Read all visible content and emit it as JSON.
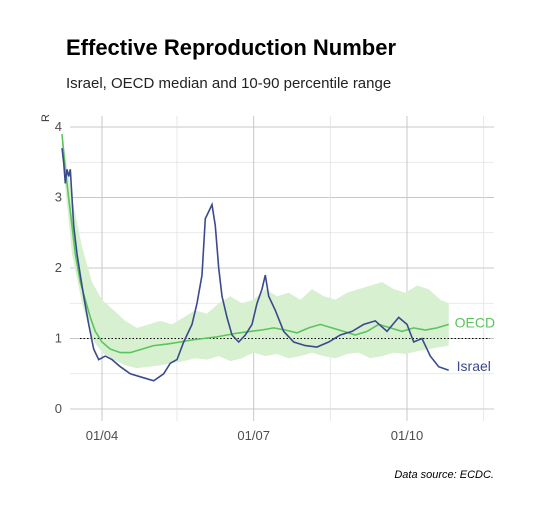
{
  "chart_data": {
    "type": "line",
    "title": "Effective Reproduction Number",
    "subtitle": "Israel, OECD median and 10-90 percentile range",
    "ylabel": "R",
    "xlabel": "",
    "caption": "Data source: ECDC.",
    "ylim": [
      0,
      4
    ],
    "y_ticks": [
      "0",
      "1",
      "2",
      "3",
      "4"
    ],
    "x_ticks": [
      "01/04",
      "01/07",
      "01/10"
    ],
    "reference_line": 1,
    "grid": true,
    "colors": {
      "israel": "#3b4a8c",
      "oecd": "#5cc45c",
      "band": "#d6f0d0"
    },
    "series": [
      {
        "name": "Israel",
        "x": [
          "2020-03-08",
          "2020-03-09",
          "2020-03-10",
          "2020-03-11",
          "2020-03-12",
          "2020-03-13",
          "2020-03-14",
          "2020-03-15",
          "2020-03-17",
          "2020-03-19",
          "2020-03-21",
          "2020-03-24",
          "2020-03-27",
          "2020-03-30",
          "2020-04-03",
          "2020-04-07",
          "2020-04-12",
          "2020-04-18",
          "2020-04-25",
          "2020-05-02",
          "2020-05-08",
          "2020-05-12",
          "2020-05-16",
          "2020-05-20",
          "2020-05-25",
          "2020-05-28",
          "2020-05-31",
          "2020-06-02",
          "2020-06-04",
          "2020-06-06",
          "2020-06-08",
          "2020-06-10",
          "2020-06-12",
          "2020-06-15",
          "2020-06-18",
          "2020-06-22",
          "2020-06-26",
          "2020-06-30",
          "2020-07-03",
          "2020-07-06",
          "2020-07-08",
          "2020-07-10",
          "2020-07-14",
          "2020-07-19",
          "2020-07-25",
          "2020-08-01",
          "2020-08-08",
          "2020-08-15",
          "2020-08-22",
          "2020-08-29",
          "2020-09-05",
          "2020-09-12",
          "2020-09-19",
          "2020-09-26",
          "2020-10-01",
          "2020-10-05",
          "2020-10-10",
          "2020-10-15",
          "2020-10-20",
          "2020-10-26"
        ],
        "values": [
          3.7,
          3.5,
          3.2,
          3.4,
          3.3,
          3.4,
          3.0,
          2.6,
          2.2,
          1.9,
          1.6,
          1.2,
          0.85,
          0.7,
          0.75,
          0.7,
          0.6,
          0.5,
          0.45,
          0.4,
          0.5,
          0.65,
          0.7,
          0.95,
          1.2,
          1.5,
          1.9,
          2.7,
          2.8,
          2.9,
          2.6,
          2.0,
          1.6,
          1.3,
          1.05,
          0.95,
          1.05,
          1.2,
          1.5,
          1.7,
          1.9,
          1.6,
          1.4,
          1.1,
          0.95,
          0.9,
          0.88,
          0.95,
          1.05,
          1.1,
          1.2,
          1.25,
          1.1,
          1.3,
          1.2,
          0.95,
          1.0,
          0.75,
          0.6,
          0.55
        ]
      },
      {
        "name": "OECD",
        "x": [
          "2020-03-08",
          "2020-03-10",
          "2020-03-13",
          "2020-03-16",
          "2020-03-19",
          "2020-03-22",
          "2020-03-25",
          "2020-03-28",
          "2020-04-01",
          "2020-04-06",
          "2020-04-12",
          "2020-04-18",
          "2020-04-25",
          "2020-05-02",
          "2020-05-10",
          "2020-05-18",
          "2020-05-25",
          "2020-06-01",
          "2020-06-08",
          "2020-06-15",
          "2020-06-22",
          "2020-06-29",
          "2020-07-06",
          "2020-07-13",
          "2020-07-20",
          "2020-07-27",
          "2020-08-03",
          "2020-08-10",
          "2020-08-17",
          "2020-08-24",
          "2020-08-31",
          "2020-09-07",
          "2020-09-14",
          "2020-09-21",
          "2020-09-28",
          "2020-10-05",
          "2020-10-12",
          "2020-10-19",
          "2020-10-26"
        ],
        "values": [
          3.9,
          3.4,
          2.8,
          2.2,
          1.8,
          1.55,
          1.3,
          1.1,
          0.95,
          0.85,
          0.8,
          0.8,
          0.85,
          0.9,
          0.92,
          0.95,
          0.98,
          1.0,
          1.02,
          1.05,
          1.08,
          1.1,
          1.12,
          1.15,
          1.12,
          1.08,
          1.15,
          1.2,
          1.15,
          1.1,
          1.05,
          1.1,
          1.2,
          1.15,
          1.1,
          1.15,
          1.12,
          1.15,
          1.2
        ]
      }
    ],
    "band": {
      "name": "OECD 10-90 percentile range",
      "x": [
        "2020-03-08",
        "2020-03-14",
        "2020-03-20",
        "2020-03-26",
        "2020-04-01",
        "2020-04-08",
        "2020-04-15",
        "2020-04-22",
        "2020-04-29",
        "2020-05-06",
        "2020-05-13",
        "2020-05-20",
        "2020-05-27",
        "2020-06-03",
        "2020-06-10",
        "2020-06-17",
        "2020-06-24",
        "2020-07-01",
        "2020-07-08",
        "2020-07-15",
        "2020-07-22",
        "2020-07-29",
        "2020-08-05",
        "2020-08-12",
        "2020-08-19",
        "2020-08-26",
        "2020-09-02",
        "2020-09-09",
        "2020-09-16",
        "2020-09-23",
        "2020-09-30",
        "2020-10-07",
        "2020-10-14",
        "2020-10-21",
        "2020-10-26"
      ],
      "low": [
        3.6,
        2.2,
        1.5,
        1.0,
        0.8,
        0.7,
        0.62,
        0.58,
        0.6,
        0.62,
        0.65,
        0.68,
        0.72,
        0.7,
        0.75,
        0.68,
        0.72,
        0.8,
        0.75,
        0.78,
        0.72,
        0.75,
        0.8,
        0.75,
        0.72,
        0.78,
        0.8,
        0.72,
        0.75,
        0.8,
        0.78,
        0.82,
        0.85,
        0.88,
        0.9
      ],
      "high": [
        3.9,
        3.0,
        2.3,
        1.8,
        1.55,
        1.4,
        1.25,
        1.15,
        1.2,
        1.25,
        1.2,
        1.3,
        1.4,
        1.35,
        1.5,
        1.6,
        1.5,
        1.55,
        1.7,
        1.6,
        1.65,
        1.55,
        1.7,
        1.6,
        1.55,
        1.65,
        1.7,
        1.75,
        1.8,
        1.7,
        1.65,
        1.75,
        1.7,
        1.55,
        1.5
      ]
    }
  }
}
